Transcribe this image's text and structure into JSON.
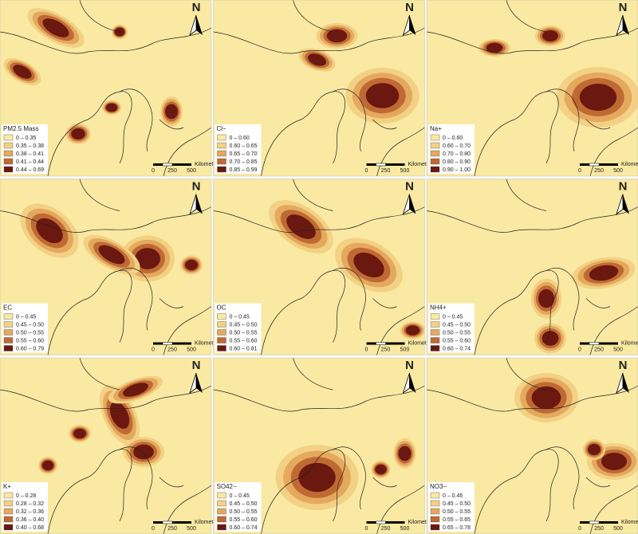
{
  "panels": [
    {
      "title": "PM2.5 Mass",
      "legend": [
        "0 – 0.35",
        "0.35 – 0.38",
        "0.38 – 0.41",
        "0.41 – 0.44",
        "0.44 – 0.69"
      ]
    },
    {
      "title": "Cl−",
      "legend": [
        "0 – 0.60",
        "0.60 – 0.65",
        "0.65 – 0.70",
        "0.70 – 0.85",
        "0.85 – 0.99"
      ]
    },
    {
      "title": "Na+",
      "legend": [
        "0 – 0.60",
        "0.60 – 0.70",
        "0.70 – 0.80",
        "0.80 – 0.90",
        "0.90 – 1.00"
      ]
    },
    {
      "title": "EC",
      "legend": [
        "0 – 0.45",
        "0.45 – 0.50",
        "0.50 – 0.55",
        "0.55 – 0.60",
        "0.60 – 0.79"
      ]
    },
    {
      "title": "OC",
      "legend": [
        "0 – 0.45",
        "0.45 – 0.50",
        "0.50 – 0.55",
        "0.55 – 0.60",
        "0.60 – 0.81"
      ]
    },
    {
      "title": "NH4+",
      "legend": [
        "0 – 0.45",
        "0.45 – 0.50",
        "0.50 – 0.55",
        "0.55 – 0.60",
        "0.60 – 0.74"
      ]
    },
    {
      "title": "K+",
      "legend": [
        "0 – 0.28",
        "0.28 – 0.32",
        "0.32 – 0.36",
        "0.36 – 0.40",
        "0.40 – 0.68"
      ]
    },
    {
      "title": "SO42−",
      "legend": [
        "0 – 0.45",
        "0.45 – 0.50",
        "0.50 – 0.55",
        "0.55 – 0.60",
        "0.60 – 0.74"
      ]
    },
    {
      "title": "NO3−",
      "legend": [
        "0 – 0.45",
        "0.45 – 0.50",
        "0.50 – 0.55",
        "0.55 – 0.65",
        "0.65 – 0.78"
      ]
    }
  ],
  "legend_colors": [
    "#f9e9a2",
    "#f3d184",
    "#e4a95e",
    "#c06a33",
    "#6b1810"
  ],
  "scale": {
    "labels": [
      "0",
      "250",
      "500"
    ],
    "unit": "Kilometers"
  },
  "north": "N"
}
